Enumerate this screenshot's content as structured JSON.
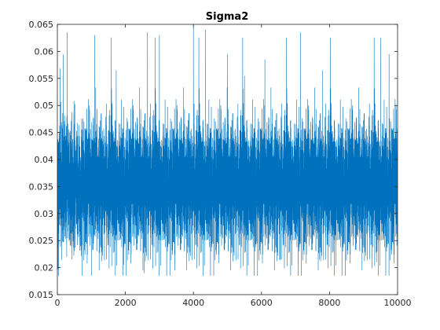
{
  "chart_data": {
    "type": "line",
    "title": "Sigma2",
    "xlabel": "",
    "ylabel": "",
    "xlim": [
      0,
      10000
    ],
    "ylim": [
      0.015,
      0.065
    ],
    "x_ticks": [
      "0",
      "2000",
      "4000",
      "6000",
      "8000",
      "10000"
    ],
    "y_ticks": [
      "0.015",
      "0.02",
      "0.025",
      "0.03",
      "0.035",
      "0.04",
      "0.045",
      "0.05",
      "0.055",
      "0.06",
      "0.065"
    ],
    "grid": false,
    "box": true,
    "series": [
      {
        "color": "#0072BD",
        "n_samples": 10000,
        "typical_band": [
          0.025,
          0.048
        ],
        "typical_center": 0.0355,
        "min_observed": 0.0185,
        "max_observed": 0.065,
        "upper_peaks": [
          {
            "x": 290,
            "y": 0.0635
          },
          {
            "x": 1100,
            "y": 0.063
          },
          {
            "x": 1730,
            "y": 0.0565
          },
          {
            "x": 2650,
            "y": 0.0635
          },
          {
            "x": 3000,
            "y": 0.063
          },
          {
            "x": 4000,
            "y": 0.065
          },
          {
            "x": 4350,
            "y": 0.064
          },
          {
            "x": 5000,
            "y": 0.0595
          },
          {
            "x": 5500,
            "y": 0.0555
          },
          {
            "x": 6100,
            "y": 0.0585
          },
          {
            "x": 7150,
            "y": 0.0635
          },
          {
            "x": 7800,
            "y": 0.0565
          },
          {
            "x": 9500,
            "y": 0.0625
          },
          {
            "x": 9750,
            "y": 0.0595
          }
        ],
        "lower_dips": [
          {
            "x": 1000,
            "y": 0.0185
          },
          {
            "x": 1950,
            "y": 0.0205
          },
          {
            "x": 2550,
            "y": 0.019
          },
          {
            "x": 3450,
            "y": 0.0195
          },
          {
            "x": 6550,
            "y": 0.0215
          },
          {
            "x": 7700,
            "y": 0.0215
          },
          {
            "x": 9380,
            "y": 0.021
          }
        ]
      }
    ]
  }
}
